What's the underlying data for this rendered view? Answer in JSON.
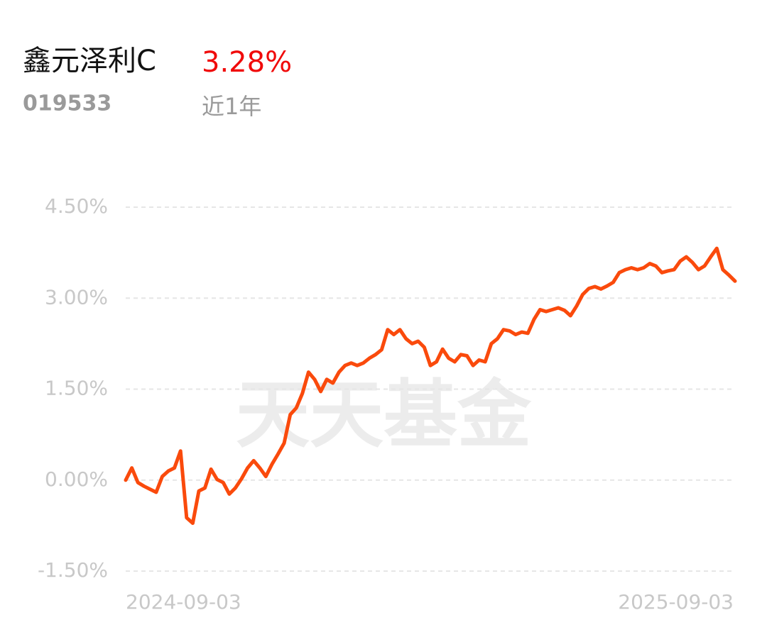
{
  "chart_data": {
    "type": "line",
    "title": "鑫元泽利C",
    "headline": "3.28%",
    "code": "019533",
    "period": "近1年",
    "watermark": "天天基金",
    "categories": [
      "2024-09-03",
      null,
      null,
      null,
      null,
      null,
      null,
      null,
      null,
      null,
      null,
      null,
      null,
      null,
      null,
      null,
      null,
      null,
      null,
      null,
      null,
      null,
      null,
      null,
      null,
      null,
      null,
      null,
      null,
      null,
      null,
      null,
      null,
      null,
      null,
      null,
      null,
      null,
      null,
      null,
      null,
      null,
      null,
      null,
      null,
      null,
      null,
      null,
      null,
      null,
      null,
      null,
      null,
      null,
      null,
      null,
      null,
      null,
      null,
      null,
      null,
      null,
      null,
      null,
      null,
      null,
      null,
      null,
      null,
      null,
      null,
      null,
      null,
      null,
      null,
      null,
      null,
      null,
      null,
      null,
      null,
      null,
      null,
      null,
      null,
      null,
      null,
      null,
      null,
      null,
      null,
      null,
      null,
      null,
      null,
      null,
      null,
      null,
      null,
      null,
      "2025-09-03"
    ],
    "values": [
      0,
      0.2,
      -0.04,
      -0.1,
      -0.15,
      -0.2,
      0.06,
      0.15,
      0.2,
      0.48,
      -0.62,
      -0.71,
      -0.18,
      -0.13,
      0.18,
      0.01,
      -0.04,
      -0.23,
      -0.13,
      0.02,
      0.2,
      0.32,
      0.2,
      0.06,
      0.26,
      0.43,
      0.61,
      1.08,
      1.19,
      1.43,
      1.78,
      1.66,
      1.46,
      1.66,
      1.6,
      1.78,
      1.89,
      1.93,
      1.89,
      1.93,
      2.01,
      2.07,
      2.15,
      2.48,
      2.4,
      2.48,
      2.33,
      2.25,
      2.29,
      2.19,
      1.89,
      1.95,
      2.16,
      2.01,
      1.95,
      2.07,
      2.05,
      1.89,
      1.98,
      1.95,
      2.25,
      2.33,
      2.48,
      2.46,
      2.4,
      2.44,
      2.42,
      2.65,
      2.81,
      2.78,
      2.81,
      2.84,
      2.8,
      2.71,
      2.87,
      3.06,
      3.16,
      3.19,
      3.15,
      3.2,
      3.26,
      3.42,
      3.47,
      3.5,
      3.47,
      3.5,
      3.57,
      3.53,
      3.42,
      3.45,
      3.47,
      3.61,
      3.68,
      3.59,
      3.47,
      3.53,
      3.68,
      3.82,
      3.47,
      3.38,
      3.28
    ],
    "color": "#fa4a0c",
    "ylim": [
      -1.5,
      4.5
    ],
    "yticks": [
      {
        "value": 4.5,
        "label": "4.50%"
      },
      {
        "value": 3,
        "label": "3.00%"
      },
      {
        "value": 1.5,
        "label": "1.50%"
      },
      {
        "value": 0,
        "label": "0.00%"
      },
      {
        "value": -1.5,
        "label": "-1.50%"
      }
    ],
    "grid": true
  }
}
